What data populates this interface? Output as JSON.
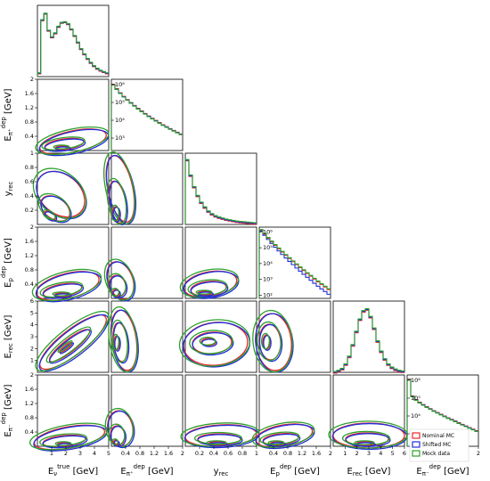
{
  "chart_data": {
    "type": "corner-plot",
    "variables": [
      {
        "key": "etrue",
        "label_base": "E",
        "label_sub": "ν",
        "label_sup": "true",
        "label_unit": " [GeV]",
        "range": [
          0,
          5
        ],
        "ticks": [
          1,
          2,
          3,
          4,
          5
        ]
      },
      {
        "key": "epip",
        "label_base": "E",
        "label_sub": "π⁺",
        "label_sup": "dep",
        "label_unit": " [GeV]",
        "range": [
          0,
          2.0
        ],
        "ticks": [
          0.4,
          0.8,
          1.2,
          1.6,
          2.0
        ]
      },
      {
        "key": "yrec",
        "label_base": "y",
        "label_sub": "rec",
        "label_sup": "",
        "label_unit": "",
        "range": [
          0,
          1.0
        ],
        "ticks": [
          0.2,
          0.4,
          0.6,
          0.8,
          1.0
        ]
      },
      {
        "key": "ep",
        "label_base": "E",
        "label_sub": "p",
        "label_sup": "dep",
        "label_unit": " [GeV]",
        "range": [
          0,
          2.0
        ],
        "ticks": [
          0.4,
          0.8,
          1.2,
          1.6,
          2.0
        ]
      },
      {
        "key": "erec",
        "label_base": "E",
        "label_sub": "rec",
        "label_sup": "",
        "label_unit": " [GeV]",
        "range": [
          0,
          6
        ],
        "ticks": [
          1,
          2,
          3,
          4,
          5,
          6
        ]
      },
      {
        "key": "epim",
        "label_base": "E",
        "label_sub": "π⁻",
        "label_sup": "dep",
        "label_unit": " [GeV]",
        "range": [
          0,
          2.0
        ],
        "ticks": [
          0.4,
          0.8,
          1.2,
          1.6,
          2.0
        ]
      }
    ],
    "diagonal_log_ticks": [
      "10²",
      "10³",
      "10⁴",
      "10⁵",
      "10⁶"
    ],
    "series": [
      {
        "name": "Nominal MC",
        "color": "#e8262a"
      },
      {
        "name": "Shifted MC",
        "color": "#1f2fd8"
      },
      {
        "name": "Mock data",
        "color": "#2ca02c"
      }
    ],
    "histograms": {
      "etrue": [
        0.05,
        0.86,
        0.96,
        0.7,
        0.6,
        0.66,
        0.76,
        0.82,
        0.83,
        0.8,
        0.72,
        0.62,
        0.52,
        0.42,
        0.34,
        0.27,
        0.21,
        0.16,
        0.12,
        0.09,
        0.07,
        0.05
      ],
      "epip_log": [
        6.0,
        5.75,
        5.52,
        5.32,
        5.14,
        4.97,
        4.81,
        4.65,
        4.5,
        4.36,
        4.22,
        4.09,
        3.97,
        3.85,
        3.73,
        3.62,
        3.51,
        3.41,
        3.31,
        3.21
      ],
      "yrec": [
        0.95,
        0.72,
        0.55,
        0.42,
        0.32,
        0.25,
        0.19,
        0.15,
        0.12,
        0.1,
        0.085,
        0.07,
        0.06,
        0.05,
        0.04,
        0.035,
        0.03,
        0.025,
        0.02,
        0.015
      ],
      "ep_log_nominal": [
        6.1,
        5.85,
        5.6,
        5.37,
        5.15,
        4.93,
        4.72,
        4.52,
        4.32,
        4.12,
        3.93,
        3.74,
        3.56,
        3.37,
        3.2,
        3.02,
        2.85,
        2.68,
        2.52,
        2.36
      ],
      "ep_log_shifted": [
        6.05,
        5.78,
        5.52,
        5.27,
        5.03,
        4.8,
        4.57,
        4.35,
        4.14,
        3.93,
        3.72,
        3.52,
        3.32,
        3.13,
        2.94,
        2.75,
        2.57,
        2.4,
        2.23,
        2.06
      ],
      "erec": [
        0.0,
        0.02,
        0.05,
        0.12,
        0.24,
        0.42,
        0.63,
        0.82,
        0.95,
        0.98,
        0.86,
        0.68,
        0.48,
        0.32,
        0.2,
        0.12,
        0.07,
        0.04,
        0.02,
        0.01
      ],
      "epim_log": [
        6.05,
        5.1,
        4.9,
        4.75,
        4.62,
        4.5,
        4.39,
        4.28,
        4.18,
        4.08,
        3.98,
        3.88,
        3.79,
        3.7,
        3.6,
        3.51,
        3.42,
        3.33,
        3.24,
        3.15
      ]
    },
    "legend_position": "lower-right of last diagonal panel"
  }
}
